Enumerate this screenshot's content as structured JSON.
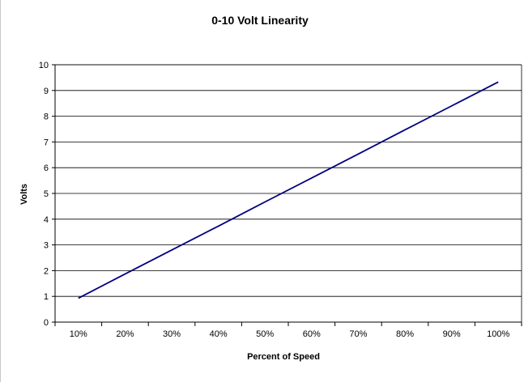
{
  "chart_data": {
    "type": "line",
    "title": "0-10 Volt Linearity",
    "xlabel": "Percent of Speed",
    "ylabel": "Volts",
    "categories": [
      "10%",
      "20%",
      "30%",
      "40%",
      "50%",
      "60%",
      "70%",
      "80%",
      "90%",
      "100%"
    ],
    "series": [
      {
        "values": [
          0.93,
          1.87,
          2.8,
          3.73,
          4.67,
          5.6,
          6.53,
          7.47,
          8.4,
          9.33
        ],
        "color": "#000080"
      }
    ],
    "ylim": [
      0,
      10
    ],
    "yticks": [
      "0",
      "1",
      "2",
      "3",
      "4",
      "5",
      "6",
      "7",
      "8",
      "9",
      "10"
    ],
    "grid": true,
    "legend": "none"
  }
}
